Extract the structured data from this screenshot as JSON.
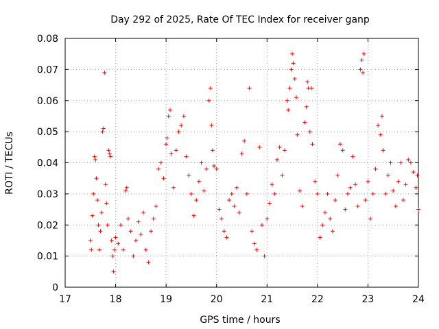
{
  "chart_data": {
    "type": "scatter",
    "title": "Day 292 of 2025, Rate Of TEC Index for receiver ganp",
    "xlabel": "GPS time / hours",
    "ylabel": "ROTI / TECUs",
    "xlim": [
      17,
      24
    ],
    "ylim": [
      0,
      0.08
    ],
    "xticks": [
      17,
      18,
      19,
      20,
      21,
      22,
      23,
      24
    ],
    "yticks": [
      0,
      0.01,
      0.02,
      0.03,
      0.04,
      0.05,
      0.06,
      0.07,
      0.08
    ],
    "ytick_labels": [
      "0",
      "0.01",
      "0.02",
      "0.03",
      "0.04",
      "0.05",
      "0.06",
      "0.07",
      "0.08"
    ],
    "xtick_labels": [
      "17",
      "18",
      "19",
      "20",
      "21",
      "22",
      "23",
      "24"
    ],
    "grid": true,
    "marker": "+",
    "color": "#ff0000",
    "series": [
      {
        "name": "ROTI",
        "points": [
          [
            17.5,
            0.015
          ],
          [
            17.52,
            0.012
          ],
          [
            17.54,
            0.023
          ],
          [
            17.56,
            0.03
          ],
          [
            17.58,
            0.042
          ],
          [
            17.6,
            0.041
          ],
          [
            17.62,
            0.035
          ],
          [
            17.64,
            0.028
          ],
          [
            17.66,
            0.02
          ],
          [
            17.68,
            0.012
          ],
          [
            17.7,
            0.018
          ],
          [
            17.72,
            0.024
          ],
          [
            17.74,
            0.05
          ],
          [
            17.76,
            0.051
          ],
          [
            17.78,
            0.069
          ],
          [
            17.8,
            0.033
          ],
          [
            17.82,
            0.027
          ],
          [
            17.84,
            0.02
          ],
          [
            17.86,
            0.044
          ],
          [
            17.88,
            0.043
          ],
          [
            17.9,
            0.042
          ],
          [
            17.92,
            0.015
          ],
          [
            17.94,
            0.01
          ],
          [
            17.96,
            0.005
          ],
          [
            17.98,
            0.012
          ],
          [
            18.0,
            0.016
          ],
          [
            18.05,
            0.014
          ],
          [
            18.1,
            0.02
          ],
          [
            18.15,
            0.012
          ],
          [
            18.2,
            0.031
          ],
          [
            18.22,
            0.032
          ],
          [
            18.25,
            0.022
          ],
          [
            18.3,
            0.018
          ],
          [
            18.35,
            0.01
          ],
          [
            18.4,
            0.015
          ],
          [
            18.45,
            0.021
          ],
          [
            18.5,
            0.017
          ],
          [
            18.55,
            0.024
          ],
          [
            18.6,
            0.012
          ],
          [
            18.65,
            0.008
          ],
          [
            18.7,
            0.018
          ],
          [
            18.75,
            0.022
          ],
          [
            18.8,
            0.026
          ],
          [
            18.85,
            0.038
          ],
          [
            18.9,
            0.04
          ],
          [
            18.95,
            0.035
          ],
          [
            19.0,
            0.046
          ],
          [
            19.02,
            0.048
          ],
          [
            19.05,
            0.055
          ],
          [
            19.08,
            0.057
          ],
          [
            19.1,
            0.043
          ],
          [
            19.15,
            0.032
          ],
          [
            19.2,
            0.044
          ],
          [
            19.25,
            0.05
          ],
          [
            19.3,
            0.052
          ],
          [
            19.35,
            0.055
          ],
          [
            19.4,
            0.042
          ],
          [
            19.45,
            0.036
          ],
          [
            19.5,
            0.03
          ],
          [
            19.55,
            0.023
          ],
          [
            19.6,
            0.028
          ],
          [
            19.65,
            0.034
          ],
          [
            19.7,
            0.04
          ],
          [
            19.75,
            0.031
          ],
          [
            19.8,
            0.038
          ],
          [
            19.85,
            0.06
          ],
          [
            19.88,
            0.064
          ],
          [
            19.9,
            0.052
          ],
          [
            19.92,
            0.044
          ],
          [
            19.95,
            0.039
          ],
          [
            20.0,
            0.038
          ],
          [
            20.05,
            0.025
          ],
          [
            20.1,
            0.022
          ],
          [
            20.15,
            0.018
          ],
          [
            20.2,
            0.016
          ],
          [
            20.25,
            0.028
          ],
          [
            20.3,
            0.03
          ],
          [
            20.35,
            0.026
          ],
          [
            20.4,
            0.032
          ],
          [
            20.45,
            0.024
          ],
          [
            20.5,
            0.043
          ],
          [
            20.55,
            0.047
          ],
          [
            20.6,
            0.03
          ],
          [
            20.65,
            0.064
          ],
          [
            20.7,
            0.018
          ],
          [
            20.75,
            0.014
          ],
          [
            20.8,
            0.012
          ],
          [
            20.85,
            0.045
          ],
          [
            20.9,
            0.02
          ],
          [
            20.95,
            0.01
          ],
          [
            21.0,
            0.022
          ],
          [
            21.05,
            0.027
          ],
          [
            21.1,
            0.033
          ],
          [
            21.15,
            0.03
          ],
          [
            21.2,
            0.041
          ],
          [
            21.25,
            0.045
          ],
          [
            21.3,
            0.036
          ],
          [
            21.35,
            0.044
          ],
          [
            21.4,
            0.06
          ],
          [
            21.42,
            0.057
          ],
          [
            21.45,
            0.064
          ],
          [
            21.48,
            0.07
          ],
          [
            21.5,
            0.075
          ],
          [
            21.52,
            0.072
          ],
          [
            21.55,
            0.067
          ],
          [
            21.58,
            0.061
          ],
          [
            21.6,
            0.049
          ],
          [
            21.65,
            0.031
          ],
          [
            21.7,
            0.026
          ],
          [
            21.75,
            0.053
          ],
          [
            21.78,
            0.058
          ],
          [
            21.8,
            0.066
          ],
          [
            21.82,
            0.064
          ],
          [
            21.85,
            0.05
          ],
          [
            21.88,
            0.064
          ],
          [
            21.9,
            0.046
          ],
          [
            21.95,
            0.034
          ],
          [
            22.0,
            0.03
          ],
          [
            22.05,
            0.016
          ],
          [
            22.1,
            0.02
          ],
          [
            22.15,
            0.024
          ],
          [
            22.2,
            0.03
          ],
          [
            22.25,
            0.022
          ],
          [
            22.3,
            0.018
          ],
          [
            22.35,
            0.028
          ],
          [
            22.4,
            0.036
          ],
          [
            22.45,
            0.046
          ],
          [
            22.5,
            0.044
          ],
          [
            22.55,
            0.025
          ],
          [
            22.6,
            0.03
          ],
          [
            22.65,
            0.032
          ],
          [
            22.7,
            0.042
          ],
          [
            22.75,
            0.033
          ],
          [
            22.8,
            0.026
          ],
          [
            22.85,
            0.07
          ],
          [
            22.88,
            0.073
          ],
          [
            22.9,
            0.069
          ],
          [
            22.92,
            0.075
          ],
          [
            22.95,
            0.028
          ],
          [
            23.0,
            0.034
          ],
          [
            23.05,
            0.022
          ],
          [
            23.1,
            0.03
          ],
          [
            23.15,
            0.038
          ],
          [
            23.2,
            0.052
          ],
          [
            23.25,
            0.049
          ],
          [
            23.28,
            0.055
          ],
          [
            23.3,
            0.044
          ],
          [
            23.35,
            0.03
          ],
          [
            23.4,
            0.036
          ],
          [
            23.45,
            0.04
          ],
          [
            23.5,
            0.031
          ],
          [
            23.55,
            0.026
          ],
          [
            23.6,
            0.034
          ],
          [
            23.65,
            0.04
          ],
          [
            23.7,
            0.028
          ],
          [
            23.75,
            0.033
          ],
          [
            23.8,
            0.041
          ],
          [
            23.85,
            0.04
          ],
          [
            23.9,
            0.037
          ],
          [
            23.95,
            0.032
          ],
          [
            23.98,
            0.036
          ],
          [
            24.0,
            0.025
          ]
        ]
      }
    ]
  }
}
